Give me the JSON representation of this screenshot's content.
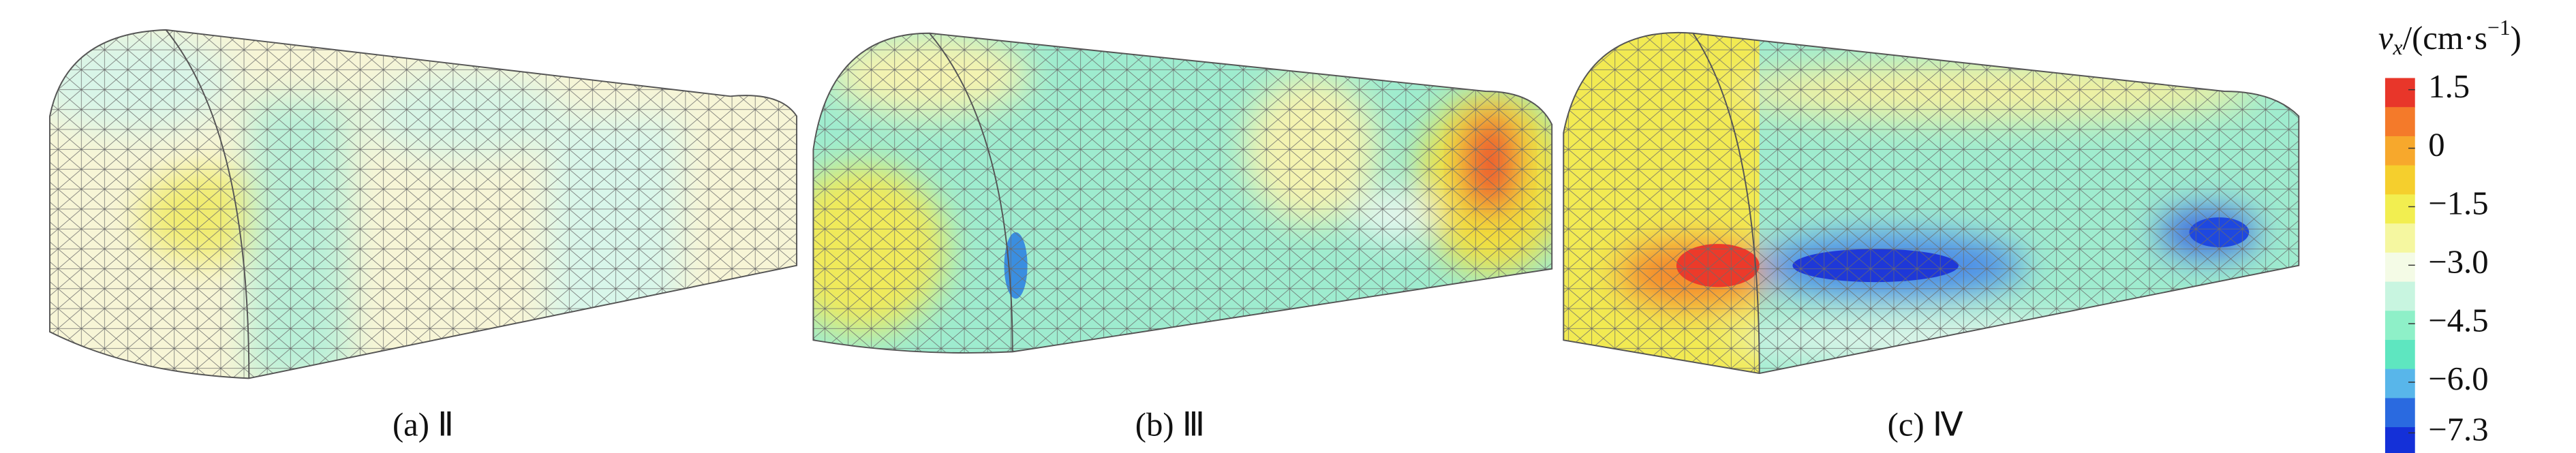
{
  "panels": [
    {
      "caption": "(a) Ⅱ"
    },
    {
      "caption": "(b) Ⅲ"
    },
    {
      "caption": "(c) Ⅳ"
    }
  ],
  "colorbar": {
    "title": [
      "v",
      "x",
      "/(cm·s",
      "−1",
      ")"
    ],
    "lim": [
      -7.9,
      1.8
    ],
    "ticks": [
      1.5,
      0,
      {
        "value": -1.5,
        "label": "−1.5"
      },
      {
        "value": -3,
        "label": "−3.0"
      },
      {
        "value": -4.5,
        "label": "−4.5"
      },
      {
        "value": -6,
        "label": "−6.0"
      },
      {
        "value": -7.3,
        "label": "−7.3"
      }
    ],
    "colors": [
      "#e8362a",
      "#f47a2a",
      "#f7a82c",
      "#f5cf2d",
      "#f2ee50",
      "#f5f7a0",
      "#f4fbe6",
      "#c8f5e0",
      "#8ef0c8",
      "#5ee6c0",
      "#58b6ea",
      "#2a6ae0",
      "#1430d8"
    ]
  }
}
